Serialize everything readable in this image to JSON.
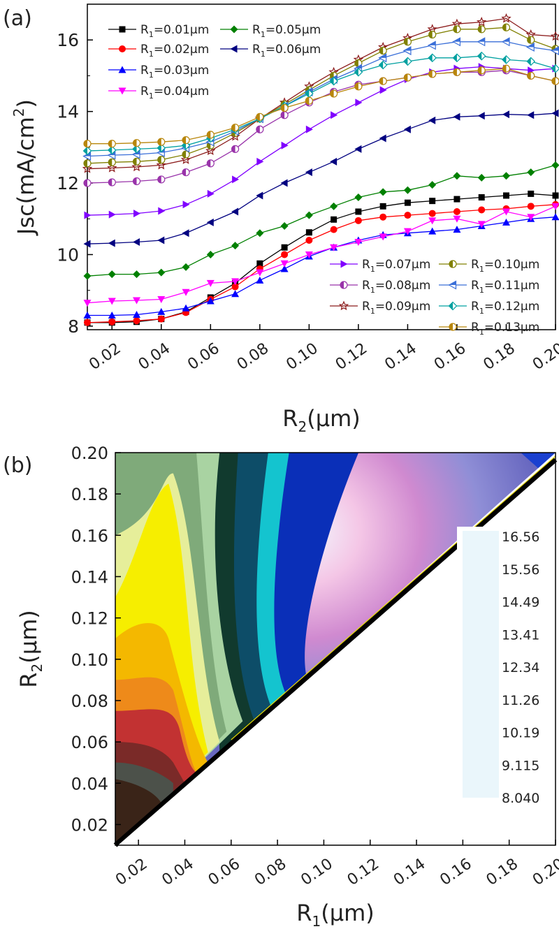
{
  "chart_data": [
    {
      "type": "line",
      "panel_label": "(a)",
      "xlabel_main": "R",
      "xlabel_sub": "2",
      "xlabel_unit": "(μm)",
      "ylabel_main": "Jsc(mA/cm",
      "ylabel_sup": "2",
      "ylabel_close": ")",
      "xlim": [
        0.01,
        0.2
      ],
      "ylim": [
        7.9,
        17.0
      ],
      "x_ticks": [
        "0.02",
        "0.04",
        "0.06",
        "0.08",
        "0.10",
        "0.12",
        "0.14",
        "0.16",
        "0.18",
        "0.20"
      ],
      "y_ticks": [
        "8",
        "10",
        "12",
        "14",
        "16"
      ],
      "x": [
        0.01,
        0.02,
        0.03,
        0.04,
        0.05,
        0.06,
        0.07,
        0.08,
        0.09,
        0.1,
        0.11,
        0.12,
        0.13,
        0.14,
        0.15,
        0.16,
        0.17,
        0.18,
        0.19,
        0.2
      ],
      "series": [
        {
          "name": "R₁=0.01μm",
          "label_pre": "R",
          "label_sub": "1",
          "label_post": "=0.01μm",
          "color": "#000000",
          "marker": "square",
          "legend_col": 0,
          "legend_row": 0,
          "values": [
            8.1,
            8.1,
            8.12,
            8.2,
            8.4,
            8.8,
            9.2,
            9.75,
            10.2,
            10.62,
            10.98,
            11.2,
            11.35,
            11.45,
            11.5,
            11.55,
            11.6,
            11.65,
            11.7,
            11.65
          ]
        },
        {
          "name": "R₁=0.02μm",
          "label_pre": "R",
          "label_sub": "1",
          "label_post": "=0.02μm",
          "color": "#ff0000",
          "marker": "circle",
          "legend_col": 0,
          "legend_row": 1,
          "values": [
            8.1,
            8.12,
            8.15,
            8.2,
            8.38,
            8.75,
            9.1,
            9.6,
            10.0,
            10.4,
            10.7,
            10.95,
            11.05,
            11.1,
            11.15,
            11.2,
            11.25,
            11.28,
            11.35,
            11.4
          ]
        },
        {
          "name": "R₁=0.03μm",
          "label_pre": "R",
          "label_sub": "1",
          "label_post": "=0.03μm",
          "color": "#0000ff",
          "marker": "triangle-up",
          "legend_col": 0,
          "legend_row": 2,
          "values": [
            8.3,
            8.3,
            8.32,
            8.4,
            8.5,
            8.7,
            8.9,
            9.28,
            9.6,
            9.95,
            10.2,
            10.4,
            10.55,
            10.6,
            10.65,
            10.7,
            10.8,
            10.9,
            11.0,
            11.05
          ]
        },
        {
          "name": "R₁=0.04μm",
          "label_pre": "R",
          "label_sub": "1",
          "label_post": "=0.04μm",
          "color": "#ff00ff",
          "marker": "triangle-down",
          "legend_col": 0,
          "legend_row": 3,
          "values": [
            8.65,
            8.7,
            8.72,
            8.75,
            8.95,
            9.2,
            9.25,
            9.5,
            9.75,
            10.0,
            10.2,
            10.35,
            10.5,
            10.65,
            10.95,
            11.0,
            10.85,
            11.2,
            11.05,
            11.35
          ]
        },
        {
          "name": "R₁=0.05μm",
          "label_pre": "R",
          "label_sub": "1",
          "label_post": "=0.05μm",
          "color": "#008000",
          "marker": "diamond",
          "legend_col": 1,
          "legend_row": 0,
          "values": [
            9.4,
            9.45,
            9.45,
            9.5,
            9.65,
            10.0,
            10.25,
            10.6,
            10.8,
            11.1,
            11.35,
            11.6,
            11.75,
            11.8,
            11.95,
            12.2,
            12.15,
            12.2,
            12.3,
            12.5
          ]
        },
        {
          "name": "R₁=0.06μm",
          "label_pre": "R",
          "label_sub": "1",
          "label_post": "=0.06μm",
          "color": "#000080",
          "marker": "triangle-left",
          "legend_col": 1,
          "legend_row": 1,
          "values": [
            10.3,
            10.32,
            10.35,
            10.4,
            10.6,
            10.9,
            11.2,
            11.65,
            12.0,
            12.3,
            12.6,
            12.95,
            13.25,
            13.5,
            13.75,
            13.85,
            13.88,
            13.92,
            13.9,
            13.95
          ]
        },
        {
          "name": "R₁=0.07μm",
          "label_pre": "R",
          "label_sub": "1",
          "label_post": "=0.07μm",
          "color": "#8000ff",
          "marker": "triangle-right",
          "legend_col": 2,
          "legend_row": 0,
          "values": [
            11.1,
            11.12,
            11.15,
            11.22,
            11.4,
            11.7,
            12.1,
            12.6,
            13.05,
            13.5,
            13.9,
            14.25,
            14.6,
            14.9,
            15.1,
            15.2,
            15.25,
            15.2,
            15.15,
            15.2
          ]
        },
        {
          "name": "R₁=0.08μm",
          "label_pre": "R",
          "label_sub": "1",
          "label_post": "=0.08μm",
          "color": "#9933aa",
          "marker": "half-circle",
          "legend_col": 2,
          "legend_row": 1,
          "values": [
            12.0,
            12.02,
            12.05,
            12.1,
            12.3,
            12.55,
            12.95,
            13.5,
            13.9,
            14.25,
            14.55,
            14.75,
            14.85,
            14.95,
            15.05,
            15.1,
            15.1,
            15.15,
            15.0,
            14.85
          ]
        },
        {
          "name": "R₁=0.09μm",
          "label_pre": "R",
          "label_sub": "1",
          "label_post": "=0.09μm",
          "color": "#8b1a1a",
          "marker": "star",
          "legend_col": 2,
          "legend_row": 2,
          "values": [
            12.4,
            12.42,
            12.45,
            12.5,
            12.65,
            12.9,
            13.3,
            13.8,
            14.25,
            14.7,
            15.1,
            15.45,
            15.8,
            16.05,
            16.3,
            16.45,
            16.5,
            16.6,
            16.15,
            16.1
          ]
        },
        {
          "name": "R₁=0.10μm",
          "label_pre": "R",
          "label_sub": "1",
          "label_post": "=0.10μm",
          "color": "#808000",
          "marker": "half-circle",
          "legend_col": 3,
          "legend_row": 0,
          "values": [
            12.55,
            12.58,
            12.6,
            12.65,
            12.8,
            13.05,
            13.4,
            13.8,
            14.2,
            14.6,
            15.0,
            15.35,
            15.7,
            15.95,
            16.15,
            16.3,
            16.3,
            16.35,
            16.0,
            15.75
          ]
        },
        {
          "name": "R₁=0.11μm",
          "label_pre": "R",
          "label_sub": "1",
          "label_post": "=0.11μm",
          "color": "#3a6fd8",
          "marker": "half-triangle-left",
          "legend_col": 3,
          "legend_row": 1,
          "values": [
            12.75,
            12.78,
            12.8,
            12.85,
            12.98,
            13.15,
            13.45,
            13.8,
            14.15,
            14.55,
            14.9,
            15.2,
            15.5,
            15.7,
            15.85,
            15.95,
            15.95,
            15.95,
            15.8,
            15.7
          ]
        },
        {
          "name": "R₁=0.12μm",
          "label_pre": "R",
          "label_sub": "1",
          "label_post": "=0.12μm",
          "color": "#00a0a0",
          "marker": "half-diamond",
          "legend_col": 3,
          "legend_row": 2,
          "values": [
            12.9,
            12.92,
            12.95,
            12.98,
            13.05,
            13.25,
            13.5,
            13.8,
            14.15,
            14.5,
            14.85,
            15.1,
            15.3,
            15.4,
            15.5,
            15.5,
            15.55,
            15.45,
            15.4,
            15.2
          ]
        },
        {
          "name": "R₁=0.13μm",
          "label_pre": "R",
          "label_sub": "1",
          "label_post": "=0.13μm",
          "color": "#b8860b",
          "marker": "half-circle",
          "legend_col": 3,
          "legend_row": 3,
          "values": [
            13.1,
            13.1,
            13.12,
            13.15,
            13.2,
            13.35,
            13.55,
            13.85,
            14.1,
            14.3,
            14.5,
            14.7,
            14.85,
            14.95,
            15.05,
            15.1,
            15.15,
            15.2,
            15.0,
            14.85
          ]
        }
      ]
    },
    {
      "type": "heatmap",
      "panel_label": "(b)",
      "xlabel_main": "R",
      "xlabel_sub": "1",
      "xlabel_unit": "(μm)",
      "ylabel_main": "R",
      "ylabel_sub": "2",
      "ylabel_unit": "(μm)",
      "xlim": [
        0.01,
        0.2
      ],
      "ylim": [
        0.01,
        0.2
      ],
      "x_ticks": [
        "0.02",
        "0.04",
        "0.06",
        "0.08",
        "0.10",
        "0.12",
        "0.14",
        "0.16",
        "0.18",
        "0.20"
      ],
      "y_ticks": [
        "0.02",
        "0.04",
        "0.06",
        "0.08",
        "0.10",
        "0.12",
        "0.14",
        "0.16",
        "0.18",
        "0.20"
      ],
      "colorbar_ticks": [
        "16.56",
        "15.56",
        "14.49",
        "13.41",
        "12.34",
        "11.26",
        "10.19",
        "9.115",
        "8.040"
      ],
      "colorbar_colors": [
        "#eaf6fb",
        "#f2a8d8",
        "#c96fc0",
        "#8d8ad0",
        "#5b5cb8",
        "#1e35c8",
        "#0a6fd0",
        "#15c8d0",
        "#0b5b7a",
        "#103830",
        "#4a7a55",
        "#a8d0a0",
        "#e8f0a0",
        "#f8f000",
        "#f8c000",
        "#f08818",
        "#c03030",
        "#7a2828",
        "#4a5048",
        "#3a2418"
      ]
    }
  ]
}
